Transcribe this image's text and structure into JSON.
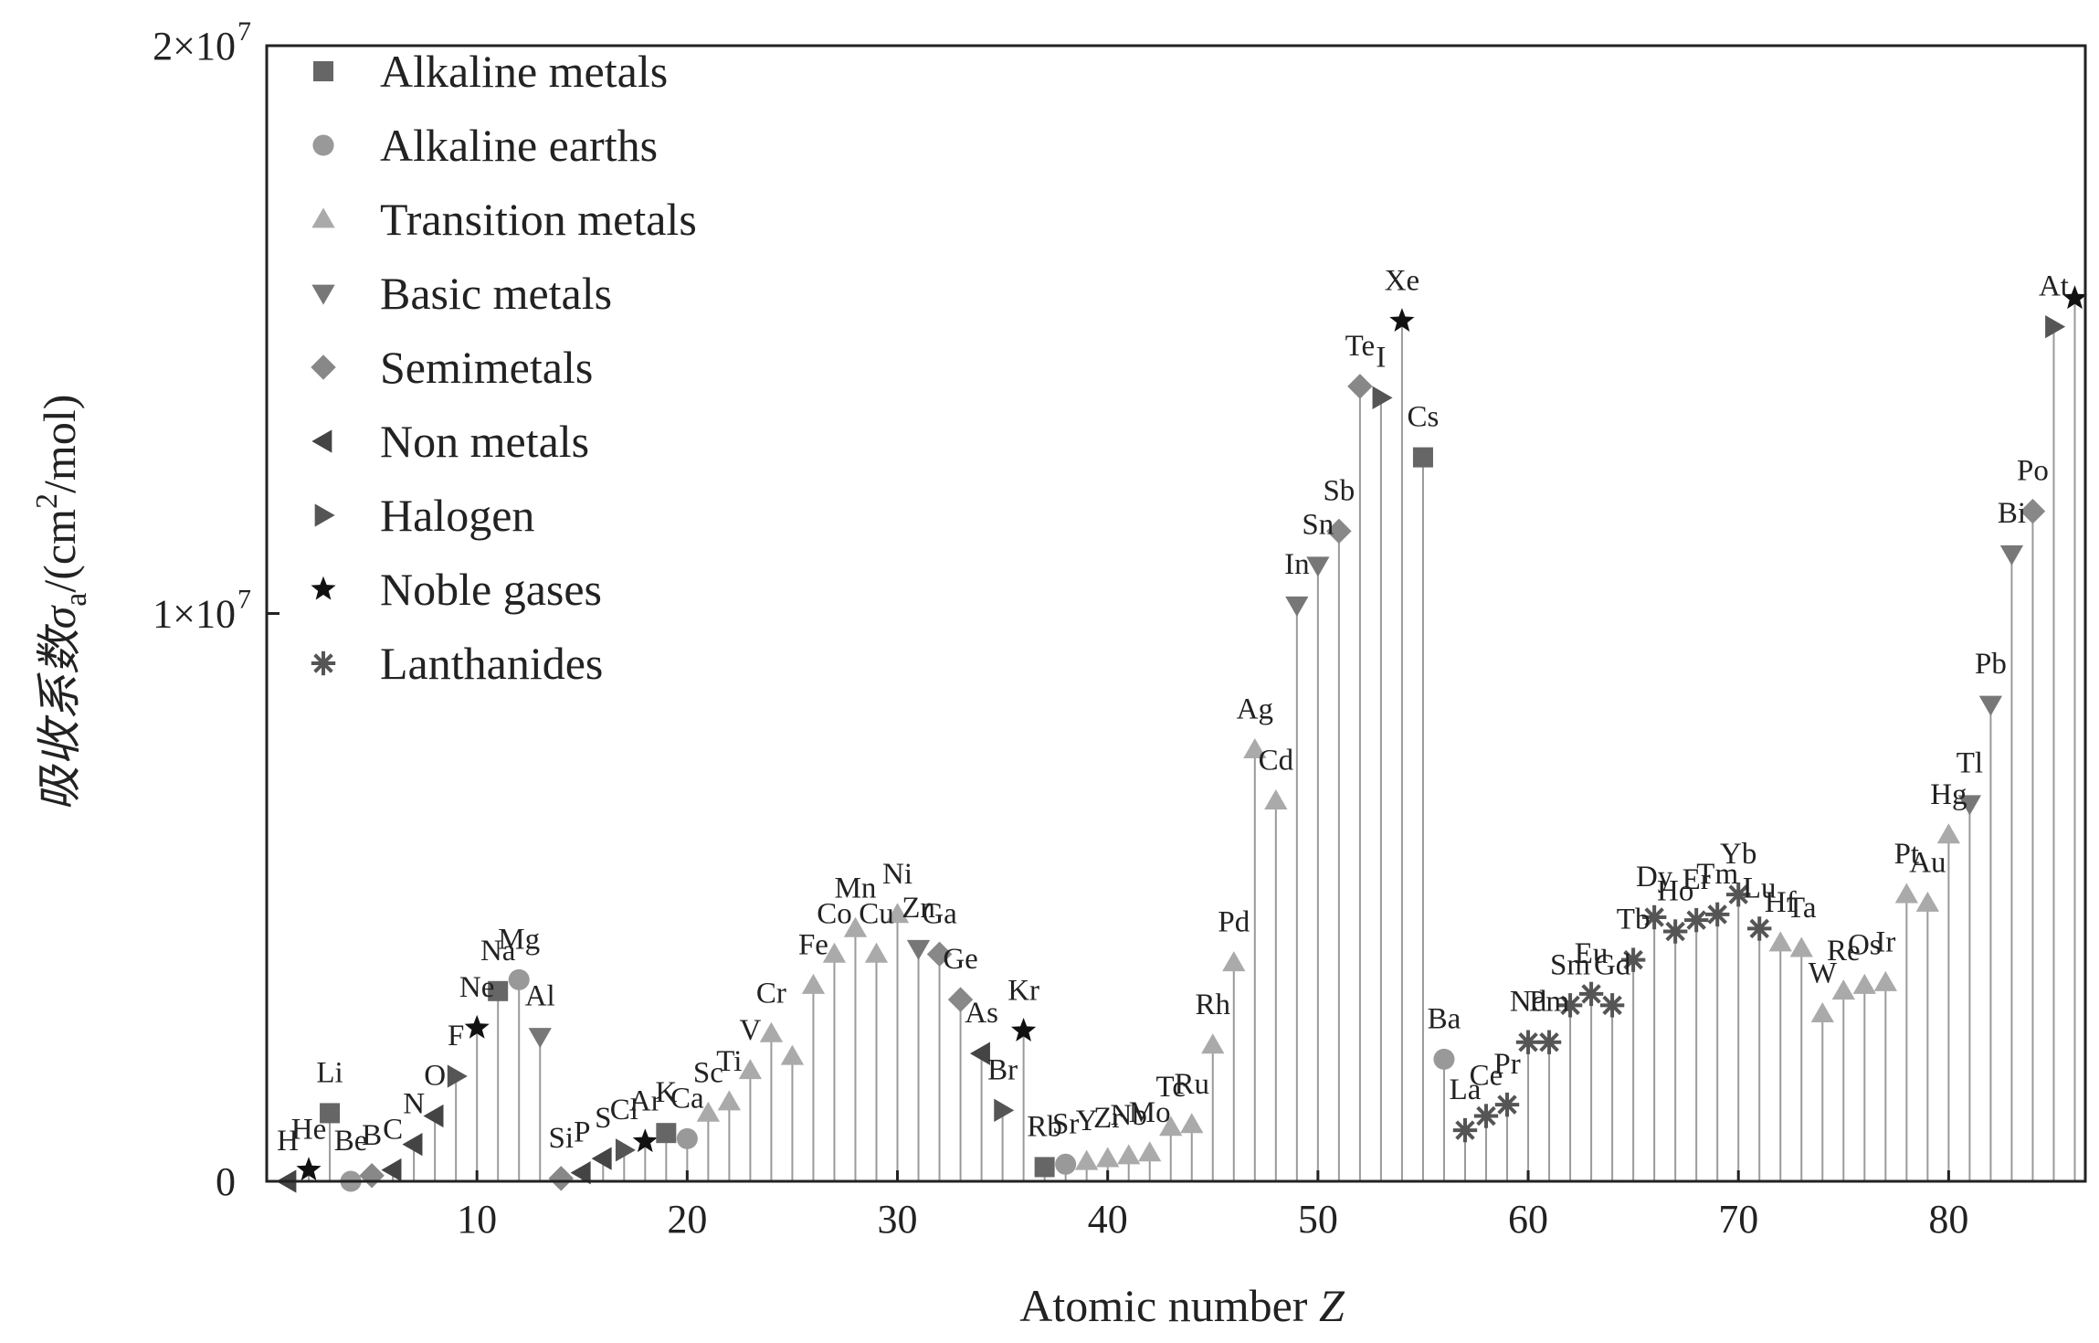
{
  "chart_data": {
    "type": "scatter",
    "title": "",
    "xlabel": "Atomic number",
    "xlabel_var": "Z",
    "ylabel": "吸收系数σ",
    "ylabel_sub": "a",
    "ylabel_unit_prefix": "/(cm",
    "ylabel_unit_sup": "2",
    "ylabel_unit_suffix": "/mol)",
    "xlim": [
      0,
      86.5
    ],
    "ylim": [
      0,
      20000000
    ],
    "xticks": [
      10,
      20,
      30,
      40,
      50,
      60,
      70,
      80
    ],
    "xtick_labels": [
      "10",
      "20",
      "30",
      "40",
      "50",
      "60",
      "70",
      "80"
    ],
    "yticks": [
      0,
      10000000,
      20000000
    ],
    "ytick_labels": [
      "0",
      "1×10",
      "2×10"
    ],
    "ytick_exponents": [
      "",
      "7",
      "7"
    ],
    "grid": false,
    "legend_position": "top-left",
    "series": [
      {
        "name": "Alkaline metals",
        "marker": "square",
        "color": "#666666"
      },
      {
        "name": "Alkaline earths",
        "marker": "circle",
        "color": "#999999"
      },
      {
        "name": "Transition metals",
        "marker": "triangle-up",
        "color": "#aaaaaa"
      },
      {
        "name": "Basic metals",
        "marker": "triangle-down",
        "color": "#777777"
      },
      {
        "name": "Semimetals",
        "marker": "diamond",
        "color": "#888888"
      },
      {
        "name": "Non metals",
        "marker": "triangle-left",
        "color": "#444444"
      },
      {
        "name": "Halogen",
        "marker": "triangle-right",
        "color": "#555555"
      },
      {
        "name": "Noble gases",
        "marker": "star",
        "color": "#111111"
      },
      {
        "name": "Lanthanides",
        "marker": "asterisk",
        "color": "#555555"
      }
    ],
    "points": [
      {
        "z": 1,
        "y": 0,
        "series": 5,
        "label": "H"
      },
      {
        "z": 2,
        "y": 200000,
        "series": 7,
        "label": "He"
      },
      {
        "z": 3,
        "y": 1200000,
        "series": 0,
        "label": "Li"
      },
      {
        "z": 4,
        "y": 0,
        "series": 1,
        "label": "Be"
      },
      {
        "z": 5,
        "y": 100000,
        "series": 4,
        "label": "B"
      },
      {
        "z": 6,
        "y": 200000,
        "series": 5,
        "label": "C"
      },
      {
        "z": 7,
        "y": 650000,
        "series": 5,
        "label": "N"
      },
      {
        "z": 8,
        "y": 1150000,
        "series": 5,
        "label": "O"
      },
      {
        "z": 9,
        "y": 1850000,
        "series": 6,
        "label": "F"
      },
      {
        "z": 10,
        "y": 2700000,
        "series": 7,
        "label": "Ne"
      },
      {
        "z": 11,
        "y": 3350000,
        "series": 0,
        "label": "Na"
      },
      {
        "z": 12,
        "y": 3550000,
        "series": 1,
        "label": "Mg"
      },
      {
        "z": 13,
        "y": 2550000,
        "series": 3,
        "label": "Al"
      },
      {
        "z": 14,
        "y": 50000,
        "series": 4,
        "label": "Si"
      },
      {
        "z": 15,
        "y": 150000,
        "series": 5,
        "label": "P"
      },
      {
        "z": 16,
        "y": 400000,
        "series": 5,
        "label": "S"
      },
      {
        "z": 17,
        "y": 550000,
        "series": 6,
        "label": "Cl"
      },
      {
        "z": 18,
        "y": 700000,
        "series": 7,
        "label": "Ar"
      },
      {
        "z": 19,
        "y": 850000,
        "series": 0,
        "label": "K"
      },
      {
        "z": 20,
        "y": 750000,
        "series": 1,
        "label": "Ca"
      },
      {
        "z": 21,
        "y": 1200000,
        "series": 2,
        "label": "Sc"
      },
      {
        "z": 22,
        "y": 1400000,
        "series": 2,
        "label": "Ti"
      },
      {
        "z": 23,
        "y": 1950000,
        "series": 2,
        "label": "V"
      },
      {
        "z": 24,
        "y": 2600000,
        "series": 2,
        "label": "Cr"
      },
      {
        "z": 25,
        "y": 2200000,
        "series": 2,
        "label": ""
      },
      {
        "z": 26,
        "y": 3450000,
        "series": 2,
        "label": "Fe"
      },
      {
        "z": 27,
        "y": 4000000,
        "series": 2,
        "label": "Co"
      },
      {
        "z": 28,
        "y": 4450000,
        "series": 2,
        "label": "Mn"
      },
      {
        "z": 29,
        "y": 4000000,
        "series": 2,
        "label": "Cu"
      },
      {
        "z": 30,
        "y": 4700000,
        "series": 2,
        "label": "Ni"
      },
      {
        "z": 31,
        "y": 4100000,
        "series": 3,
        "label": "Zn"
      },
      {
        "z": 32,
        "y": 4000000,
        "series": 4,
        "label": "Ga"
      },
      {
        "z": 33,
        "y": 3200000,
        "series": 4,
        "label": "Ge"
      },
      {
        "z": 34,
        "y": 2250000,
        "series": 5,
        "label": "As"
      },
      {
        "z": 35,
        "y": 1250000,
        "series": 6,
        "label": "Br"
      },
      {
        "z": 36,
        "y": 2650000,
        "series": 7,
        "label": "Kr"
      },
      {
        "z": 37,
        "y": 250000,
        "series": 0,
        "label": "Rb"
      },
      {
        "z": 38,
        "y": 300000,
        "series": 1,
        "label": "Sr"
      },
      {
        "z": 39,
        "y": 350000,
        "series": 2,
        "label": "Y"
      },
      {
        "z": 40,
        "y": 400000,
        "series": 2,
        "label": "Zr"
      },
      {
        "z": 41,
        "y": 450000,
        "series": 2,
        "label": "Nb"
      },
      {
        "z": 42,
        "y": 500000,
        "series": 2,
        "label": "Mo"
      },
      {
        "z": 43,
        "y": 950000,
        "series": 2,
        "label": "Tc"
      },
      {
        "z": 44,
        "y": 1000000,
        "series": 2,
        "label": "Ru"
      },
      {
        "z": 45,
        "y": 2400000,
        "series": 2,
        "label": "Rh"
      },
      {
        "z": 46,
        "y": 3850000,
        "series": 2,
        "label": "Pd"
      },
      {
        "z": 47,
        "y": 7600000,
        "series": 2,
        "label": "Ag"
      },
      {
        "z": 48,
        "y": 6700000,
        "series": 2,
        "label": "Cd"
      },
      {
        "z": 49,
        "y": 10150000,
        "series": 3,
        "label": "In"
      },
      {
        "z": 50,
        "y": 10850000,
        "series": 3,
        "label": "Sn"
      },
      {
        "z": 51,
        "y": 11450000,
        "series": 4,
        "label": "Sb"
      },
      {
        "z": 52,
        "y": 14000000,
        "series": 4,
        "label": "Te"
      },
      {
        "z": 53,
        "y": 13800000,
        "series": 6,
        "label": "I"
      },
      {
        "z": 54,
        "y": 15150000,
        "series": 7,
        "label": "Xe"
      },
      {
        "z": 55,
        "y": 12750000,
        "series": 0,
        "label": "Cs"
      },
      {
        "z": 56,
        "y": 2150000,
        "series": 1,
        "label": "Ba"
      },
      {
        "z": 57,
        "y": 900000,
        "series": 8,
        "label": "La"
      },
      {
        "z": 58,
        "y": 1150000,
        "series": 8,
        "label": "Ce"
      },
      {
        "z": 59,
        "y": 1350000,
        "series": 8,
        "label": "Pr"
      },
      {
        "z": 60,
        "y": 2450000,
        "series": 8,
        "label": "Nd"
      },
      {
        "z": 61,
        "y": 2450000,
        "series": 8,
        "label": "Pm"
      },
      {
        "z": 62,
        "y": 3100000,
        "series": 8,
        "label": "Sm"
      },
      {
        "z": 63,
        "y": 3300000,
        "series": 8,
        "label": "Eu"
      },
      {
        "z": 64,
        "y": 3100000,
        "series": 8,
        "label": "Gd"
      },
      {
        "z": 65,
        "y": 3900000,
        "series": 8,
        "label": "Tb"
      },
      {
        "z": 66,
        "y": 4650000,
        "series": 8,
        "label": "Dy"
      },
      {
        "z": 67,
        "y": 4400000,
        "series": 8,
        "label": "Ho"
      },
      {
        "z": 68,
        "y": 4600000,
        "series": 8,
        "label": "Er"
      },
      {
        "z": 69,
        "y": 4700000,
        "series": 8,
        "label": "Tm"
      },
      {
        "z": 70,
        "y": 5050000,
        "series": 8,
        "label": "Yb"
      },
      {
        "z": 71,
        "y": 4450000,
        "series": 8,
        "label": "Lu"
      },
      {
        "z": 72,
        "y": 4200000,
        "series": 2,
        "label": "Hf"
      },
      {
        "z": 73,
        "y": 4100000,
        "series": 2,
        "label": "Ta"
      },
      {
        "z": 74,
        "y": 2950000,
        "series": 2,
        "label": "W"
      },
      {
        "z": 75,
        "y": 3350000,
        "series": 2,
        "label": "Re"
      },
      {
        "z": 76,
        "y": 3450000,
        "series": 2,
        "label": "Os"
      },
      {
        "z": 77,
        "y": 3500000,
        "series": 2,
        "label": "Ir"
      },
      {
        "z": 78,
        "y": 5050000,
        "series": 2,
        "label": "Pt"
      },
      {
        "z": 79,
        "y": 4900000,
        "series": 2,
        "label": "Au"
      },
      {
        "z": 80,
        "y": 6100000,
        "series": 2,
        "label": "Hg"
      },
      {
        "z": 81,
        "y": 6650000,
        "series": 3,
        "label": "Tl"
      },
      {
        "z": 82,
        "y": 8400000,
        "series": 3,
        "label": "Pb"
      },
      {
        "z": 83,
        "y": 11050000,
        "series": 3,
        "label": "Bi"
      },
      {
        "z": 84,
        "y": 11800000,
        "series": 4,
        "label": "Po"
      },
      {
        "z": 85,
        "y": 15050000,
        "series": 6,
        "label": "At"
      },
      {
        "z": 86,
        "y": 15550000,
        "series": 7,
        "label": ""
      }
    ]
  }
}
